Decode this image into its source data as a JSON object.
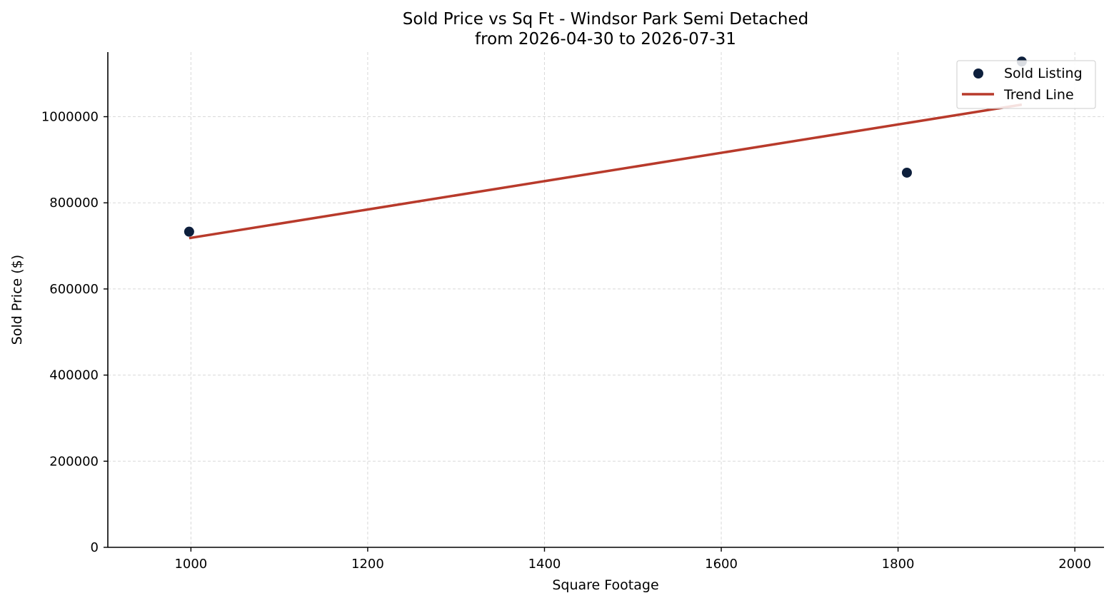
{
  "chart_data": {
    "type": "scatter",
    "title": "Sold Price vs Sq Ft - Windsor Park Semi Detached",
    "subtitle": "from 2026-04-30 to 2026-07-31",
    "xlabel": "Square Footage",
    "ylabel": "Sold Price ($)",
    "xlim": [
      906,
      2033
    ],
    "ylim": [
      0,
      1150000
    ],
    "xticks": [
      1000,
      1200,
      1400,
      1600,
      1800,
      2000
    ],
    "yticks": [
      0,
      200000,
      400000,
      600000,
      800000,
      1000000
    ],
    "grid": true,
    "legend_position": "top-right",
    "series": [
      {
        "name": "Sold Listing",
        "kind": "scatter",
        "color": "#0d1f3c",
        "points": [
          {
            "x": 998,
            "y": 733000
          },
          {
            "x": 1810,
            "y": 870000
          },
          {
            "x": 1940,
            "y": 1128000
          }
        ]
      },
      {
        "name": "Trend Line",
        "kind": "line",
        "color": "#b83a2b",
        "points": [
          {
            "x": 998,
            "y": 718000
          },
          {
            "x": 1940,
            "y": 1028000
          }
        ]
      }
    ]
  }
}
